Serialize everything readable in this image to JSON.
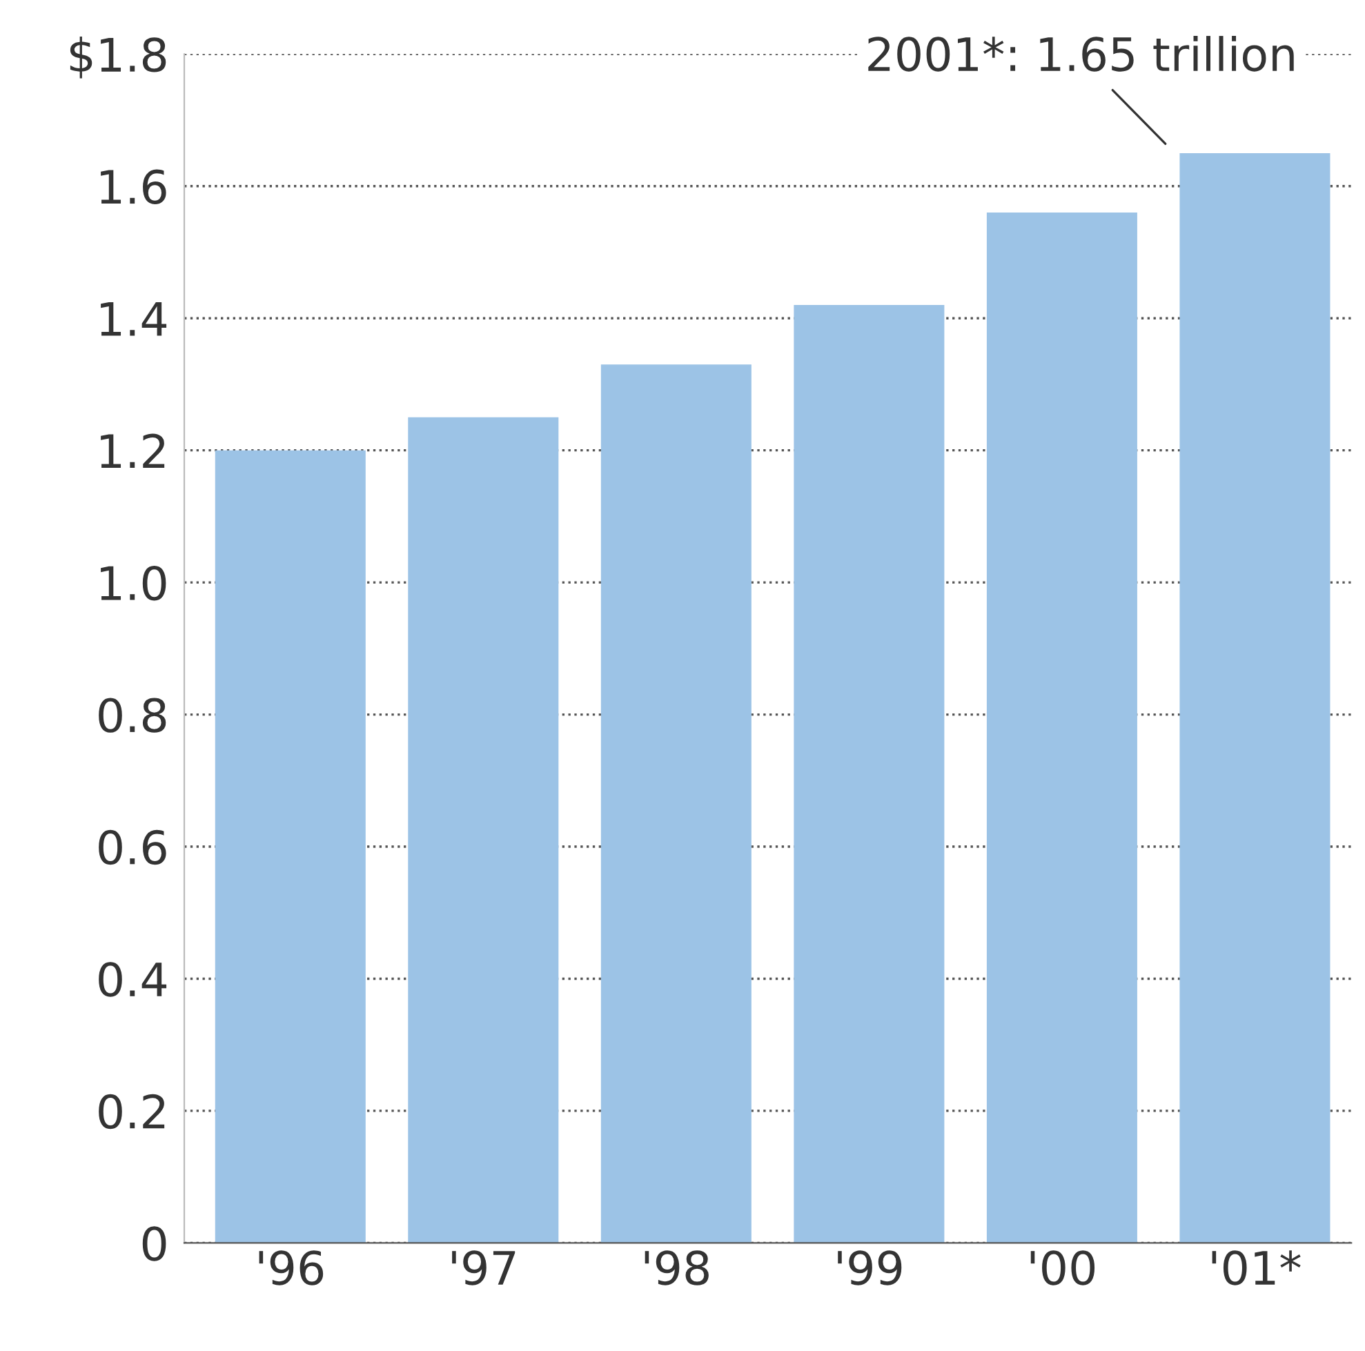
{
  "chart_data": {
    "type": "bar",
    "categories": [
      "'96",
      "'97",
      "'98",
      "'99",
      "'00",
      "'01*"
    ],
    "values": [
      1.2,
      1.25,
      1.33,
      1.42,
      1.56,
      1.65
    ],
    "color": "#9cc3e6",
    "ylim": [
      0,
      1.8
    ],
    "yticks": [
      0,
      {
        "value": 0.2,
        "label": "0.2"
      },
      {
        "value": 0.4,
        "label": "0.4"
      },
      {
        "value": 0.6,
        "label": "0.6"
      },
      {
        "value": 0.8,
        "label": "0.8"
      },
      {
        "value": 1.0,
        "label": "1.0"
      },
      {
        "value": 1.2,
        "label": "1.2"
      },
      {
        "value": 1.4,
        "label": "1.4"
      },
      {
        "value": 1.6,
        "label": "1.6"
      },
      {
        "value": 1.8,
        "label": "$1.8"
      }
    ],
    "grid": "y",
    "annotations": [
      {
        "text": "2001*: 1.65 trillion",
        "x": "'01*",
        "y": 1.65
      }
    ]
  }
}
